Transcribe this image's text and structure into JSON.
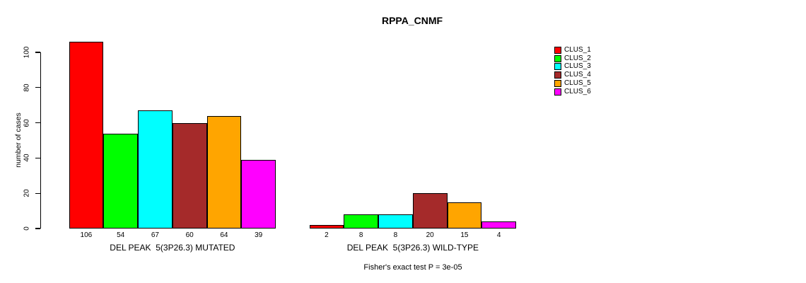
{
  "chart_data": {
    "type": "bar",
    "title": "RPPA_CNMF",
    "ylabel": "number of cases",
    "xlabel": "",
    "ylim": [
      0,
      100
    ],
    "yticks": [
      0,
      20,
      40,
      60,
      80,
      100
    ],
    "grid": false,
    "legend_position": "right",
    "categories": [
      "DEL PEAK  5(3P26.3) MUTATED",
      "DEL PEAK  5(3P26.3) WILD-TYPE"
    ],
    "series": [
      {
        "name": "CLUS_1",
        "color": "#FF0000",
        "values": [
          106,
          2
        ]
      },
      {
        "name": "CLUS_2",
        "color": "#00FF00",
        "values": [
          54,
          8
        ]
      },
      {
        "name": "CLUS_3",
        "color": "#00FFFF",
        "values": [
          67,
          8
        ]
      },
      {
        "name": "CLUS_4",
        "color": "#A52A2A",
        "values": [
          60,
          20
        ]
      },
      {
        "name": "CLUS_5",
        "color": "#FFA500",
        "values": [
          64,
          15
        ]
      },
      {
        "name": "CLUS_6",
        "color": "#FF00FF",
        "values": [
          39,
          4
        ]
      }
    ],
    "groups": [
      {
        "label": "DEL PEAK  5(3P26.3) MUTATED"
      },
      {
        "label": "DEL PEAK  5(3P26.3) WILD-TYPE"
      }
    ],
    "annotation": "Fisher's exact test P = 3e-05"
  }
}
